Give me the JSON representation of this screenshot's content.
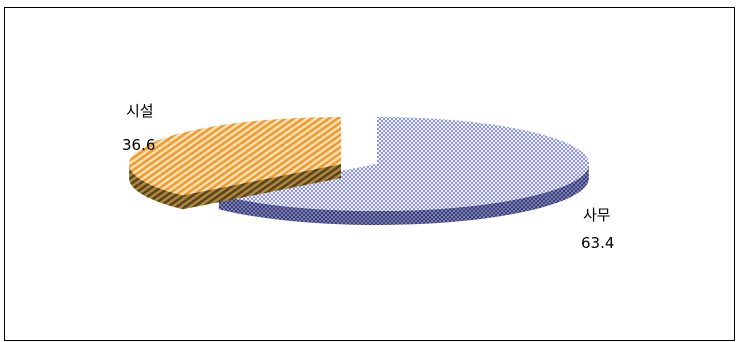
{
  "chart_data": {
    "type": "pie",
    "style": "3d-exploded",
    "slices": [
      {
        "label": "사무",
        "value": 63.4,
        "color": "#9a9ee6",
        "pattern": "checker"
      },
      {
        "label": "시설",
        "value": 36.6,
        "color": "#f3a235",
        "pattern": "diagonal"
      }
    ],
    "data_labels": [
      {
        "name": "사무",
        "value": "63.4"
      },
      {
        "name": "시설",
        "value": "36.6"
      }
    ],
    "legend": "none"
  }
}
